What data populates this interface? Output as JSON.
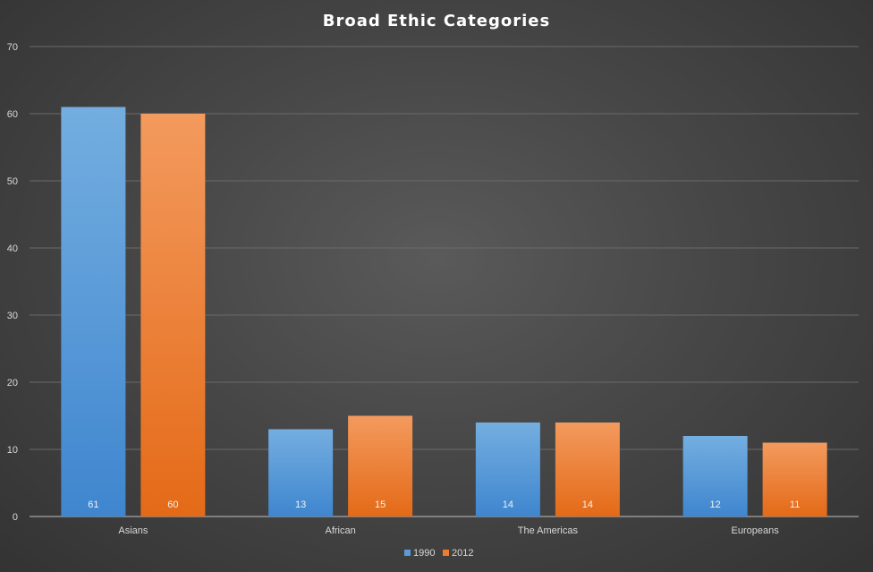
{
  "chart_data": {
    "type": "bar",
    "title": "Broad  Ethic  Categories",
    "categories": [
      "Asians",
      "African",
      "The Americas",
      "Europeans"
    ],
    "series": [
      {
        "name": "1990",
        "values": [
          61,
          13,
          14,
          12
        ],
        "color": "#5b9bd5"
      },
      {
        "name": "2012",
        "values": [
          60,
          15,
          14,
          11
        ],
        "color": "#ed7d31"
      }
    ],
    "ylim": [
      0,
      70
    ],
    "yticks": [
      0,
      10,
      20,
      30,
      40,
      50,
      60,
      70
    ],
    "grid": true,
    "legend": "bottom-center",
    "data_labels": "inside-base"
  }
}
